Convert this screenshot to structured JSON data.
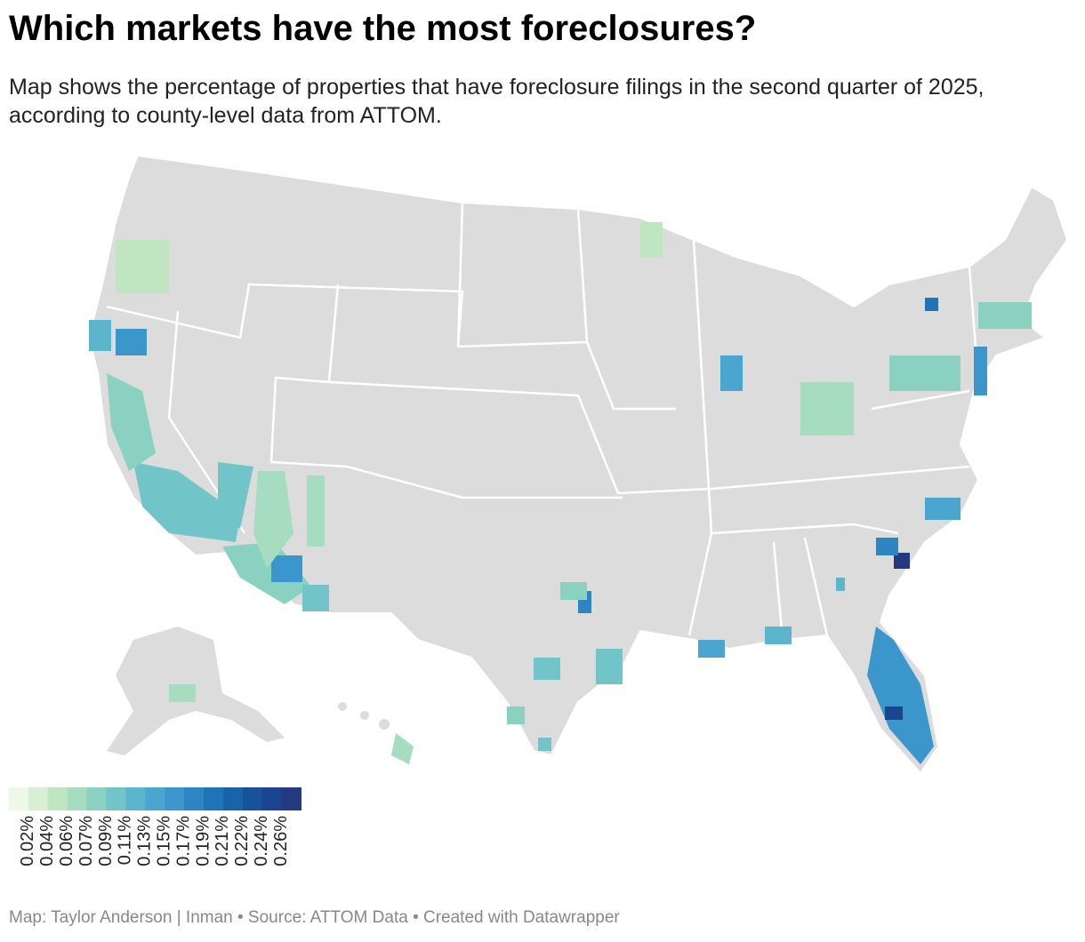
{
  "header": {
    "title": "Which markets have the most foreclosures?",
    "subtitle": "Map shows the percentage of properties that have foreclosure filings in the second quarter of 2025, according to county-level data from ATTOM."
  },
  "legend": {
    "colors": [
      "#eef8e8",
      "#d7efd2",
      "#c0e5c1",
      "#a6dcc0",
      "#8bd1c1",
      "#71c4c7",
      "#5bb6cd",
      "#4aa6cf",
      "#3b96cb",
      "#2d85c3",
      "#1f74b7",
      "#1864a9",
      "#17539b",
      "#1b4590",
      "#233a80"
    ],
    "thresholds": [
      {
        "value": 0.02,
        "label": "0.02%"
      },
      {
        "value": 0.04,
        "label": "0.04%"
      },
      {
        "value": 0.06,
        "label": "0.06%"
      },
      {
        "value": 0.07,
        "label": "0.07%"
      },
      {
        "value": 0.09,
        "label": "0.09%"
      },
      {
        "value": 0.11,
        "label": "0.11%"
      },
      {
        "value": 0.13,
        "label": "0.13%"
      },
      {
        "value": 0.15,
        "label": "0.15%"
      },
      {
        "value": 0.17,
        "label": "0.17%"
      },
      {
        "value": 0.19,
        "label": "0.19%"
      },
      {
        "value": 0.21,
        "label": "0.21%"
      },
      {
        "value": 0.22,
        "label": "0.22%"
      },
      {
        "value": 0.24,
        "label": "0.24%"
      },
      {
        "value": 0.26,
        "label": "0.26%"
      }
    ]
  },
  "footer": {
    "credit": "Map: Taylor Anderson | Inman • Source: ATTOM Data • Created with Datawrapper"
  }
}
